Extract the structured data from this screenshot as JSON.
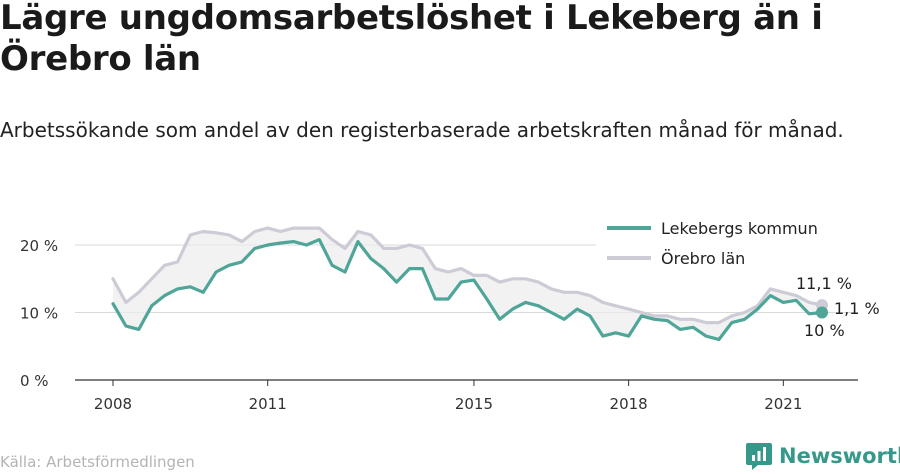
{
  "title": "Lägre ungdomsarbetslöshet i Lekeberg än i Örebro län",
  "subtitle": "Arbetssökande som andel av den registerbaserade arbetskraften månad för månad.",
  "source": "Källa: Arbetsförmedlingen",
  "brand": "Newsworthy",
  "colors": {
    "lekeberg": "#4fa597",
    "orebro": "#cdcbd6",
    "band": "#ececec",
    "grid": "#d9d9d9",
    "brand": "#36988a"
  },
  "chart_data": {
    "type": "line",
    "title": "Lägre ungdomsarbetslöshet i Lekeberg än i Örebro län",
    "ylabel": "",
    "ylim": [
      0,
      23
    ],
    "y_ticks": [
      0,
      10,
      20
    ],
    "y_tick_labels": [
      "0 %",
      "10 %",
      "20 %"
    ],
    "x_ticks": [
      2008,
      2011,
      2015,
      2018,
      2021
    ],
    "x_tick_labels": [
      "2008",
      "2011",
      "2015",
      "2018",
      "2021"
    ],
    "legend_position": "top-right",
    "end_labels": [
      {
        "series": "Örebro län",
        "text": "11,1 %"
      },
      {
        "series": "Lekebergs kommun",
        "text": "10 %"
      },
      {
        "series": "difference",
        "text": "1,1 %"
      }
    ],
    "series": [
      {
        "name": "Lekebergs kommun",
        "color": "#4fa597",
        "x": [
          2008.0,
          2008.25,
          2008.5,
          2008.75,
          2009.0,
          2009.25,
          2009.5,
          2009.75,
          2010.0,
          2010.25,
          2010.5,
          2010.75,
          2011.0,
          2011.25,
          2011.5,
          2011.75,
          2012.0,
          2012.25,
          2012.5,
          2012.75,
          2013.0,
          2013.25,
          2013.5,
          2013.75,
          2014.0,
          2014.25,
          2014.5,
          2014.75,
          2015.0,
          2015.25,
          2015.5,
          2015.75,
          2016.0,
          2016.25,
          2016.5,
          2016.75,
          2017.0,
          2017.25,
          2017.5,
          2017.75,
          2018.0,
          2018.25,
          2018.5,
          2018.75,
          2019.0,
          2019.25,
          2019.5,
          2019.75,
          2020.0,
          2020.25,
          2020.5,
          2020.75,
          2021.0,
          2021.25,
          2021.5,
          2021.75
        ],
        "values": [
          11.3,
          8.0,
          7.5,
          11.0,
          12.5,
          13.5,
          13.8,
          13.0,
          16.0,
          17.0,
          17.5,
          19.5,
          20.0,
          20.3,
          20.5,
          20.0,
          20.8,
          17.0,
          16.0,
          20.5,
          18.0,
          16.5,
          14.5,
          16.5,
          16.5,
          12.0,
          12.0,
          14.5,
          14.8,
          12.0,
          9.0,
          10.5,
          11.5,
          11.0,
          10.0,
          9.0,
          10.5,
          9.5,
          6.5,
          7.0,
          6.5,
          9.5,
          9.0,
          8.8,
          7.5,
          7.8,
          6.5,
          6.0,
          8.5,
          9.0,
          10.5,
          12.5,
          11.5,
          11.8,
          9.8,
          10.0
        ]
      },
      {
        "name": "Örebro län",
        "color": "#cdcbd6",
        "x": [
          2008.0,
          2008.25,
          2008.5,
          2008.75,
          2009.0,
          2009.25,
          2009.5,
          2009.75,
          2010.0,
          2010.25,
          2010.5,
          2010.75,
          2011.0,
          2011.25,
          2011.5,
          2011.75,
          2012.0,
          2012.25,
          2012.5,
          2012.75,
          2013.0,
          2013.25,
          2013.5,
          2013.75,
          2014.0,
          2014.25,
          2014.5,
          2014.75,
          2015.0,
          2015.25,
          2015.5,
          2015.75,
          2016.0,
          2016.25,
          2016.5,
          2016.75,
          2017.0,
          2017.25,
          2017.5,
          2017.75,
          2018.0,
          2018.25,
          2018.5,
          2018.75,
          2019.0,
          2019.25,
          2019.5,
          2019.75,
          2020.0,
          2020.25,
          2020.5,
          2020.75,
          2021.0,
          2021.25,
          2021.5,
          2021.75
        ],
        "values": [
          15.0,
          11.5,
          13.0,
          15.0,
          17.0,
          17.5,
          21.5,
          22.0,
          21.8,
          21.5,
          20.5,
          22.0,
          22.5,
          22.0,
          22.5,
          22.5,
          22.5,
          20.8,
          19.5,
          22.0,
          21.5,
          19.5,
          19.5,
          20.0,
          19.5,
          16.5,
          16.0,
          16.5,
          15.5,
          15.5,
          14.5,
          15.0,
          15.0,
          14.5,
          13.5,
          13.0,
          13.0,
          12.5,
          11.5,
          11.0,
          10.5,
          10.0,
          9.5,
          9.5,
          9.0,
          9.0,
          8.5,
          8.5,
          9.5,
          10.0,
          11.0,
          13.5,
          13.0,
          12.5,
          11.5,
          11.1
        ]
      }
    ]
  }
}
